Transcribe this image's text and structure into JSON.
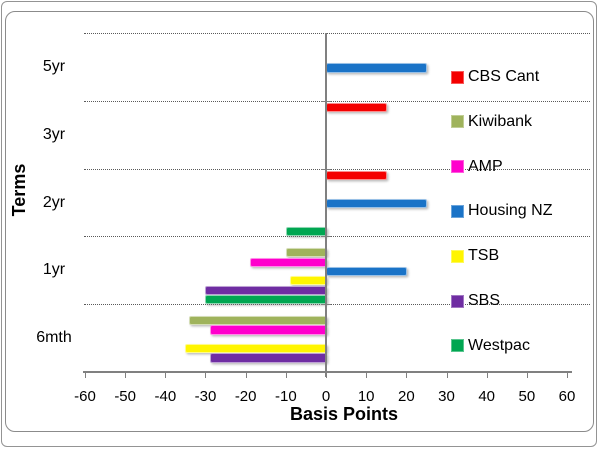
{
  "window": {
    "background_color": "#FFFFFF",
    "frame_border_color": "#8B8B8B"
  },
  "chart_data": {
    "type": "bar",
    "orientation": "horizontal",
    "title": "",
    "xlabel": "Basis Points",
    "ylabel": "Terms",
    "categories": [
      "5yr",
      "3yr",
      "2yr",
      "1yr",
      "6mth"
    ],
    "xlim": [
      -60,
      60
    ],
    "xticks": [
      -60,
      -50,
      -40,
      -30,
      -20,
      -10,
      0,
      10,
      20,
      30,
      40,
      50,
      60
    ],
    "grid": "horizontal dotted lines at category boundaries",
    "legend_position": "right",
    "axis_color": "#808080",
    "gridline_color": "#5A5A5A",
    "series": [
      {
        "name": "CBS Cant",
        "color": "#F40000",
        "values": [
          null,
          15,
          15,
          null,
          null
        ]
      },
      {
        "name": "Kiwibank",
        "color": "#9FB35C",
        "values": [
          null,
          null,
          null,
          -10,
          -34
        ]
      },
      {
        "name": "AMP",
        "color": "#FF00CC",
        "values": [
          null,
          null,
          null,
          -19,
          -29
        ]
      },
      {
        "name": "Housing NZ",
        "color": "#1A73C7",
        "values": [
          25,
          null,
          25,
          20,
          null
        ]
      },
      {
        "name": "TSB",
        "color": "#FFF500",
        "values": [
          null,
          null,
          null,
          -9,
          -35
        ]
      },
      {
        "name": "SBS",
        "color": "#6F2DA2",
        "values": [
          null,
          null,
          null,
          -30,
          -29
        ]
      },
      {
        "name": "Westpac",
        "color": "#00A651",
        "values": [
          null,
          null,
          -10,
          -30,
          null
        ]
      }
    ]
  }
}
